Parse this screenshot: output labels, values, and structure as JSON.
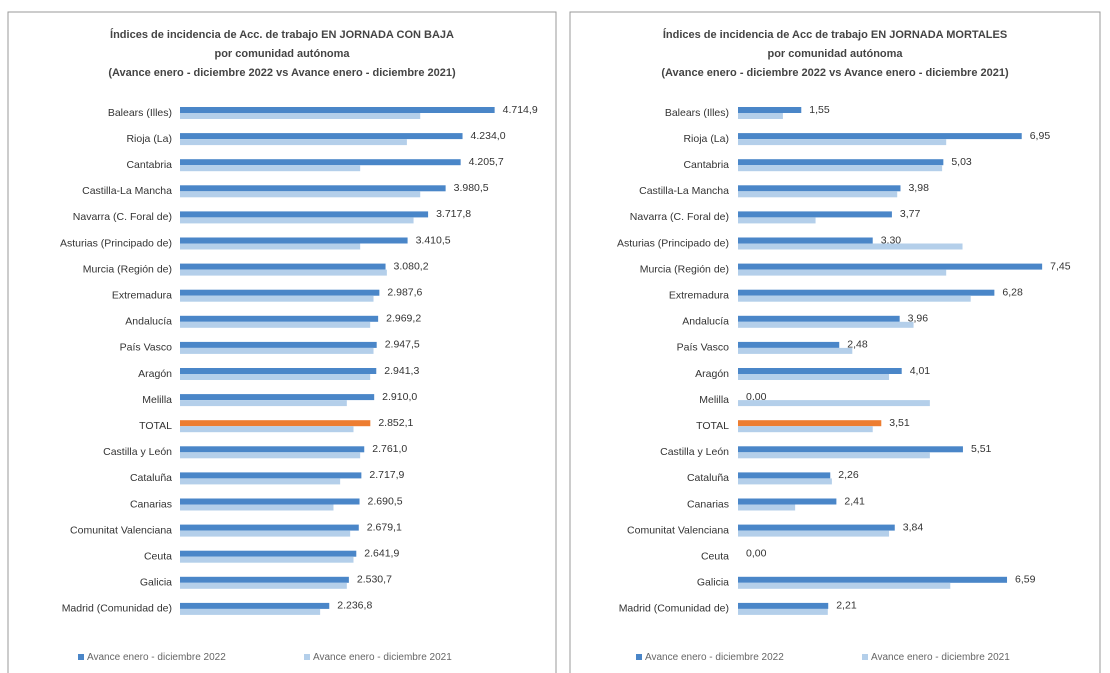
{
  "chart_data": [
    {
      "type": "bar",
      "orientation": "horizontal",
      "title": [
        "Índices de incidencia de Acc. de trabajo EN JORNADA CON BAJA",
        "por comunidad autónoma"
      ],
      "subtitle": "(Avance enero - diciembre 2022 vs Avance enero - diciembre 2021)",
      "categories": [
        "Balears (Illes)",
        "Rioja (La)",
        "Cantabria",
        "Castilla-La Mancha",
        "Navarra (C. Foral de)",
        "Asturias (Principado de)",
        "Murcia (Región de)",
        "Extremadura",
        "Andalucía",
        "País Vasco",
        "Aragón",
        "Melilla",
        "TOTAL",
        "Castilla y León",
        "Cataluña",
        "Canarias",
        "Comunitat Valenciana",
        "Ceuta",
        "Galicia",
        "Madrid (Comunidad de)"
      ],
      "series": [
        {
          "name": "Avance enero - diciembre 2022",
          "color": "#4a86c8",
          "values": [
            4714.9,
            4234.0,
            4205.7,
            3980.5,
            3717.8,
            3410.5,
            3080.2,
            2987.6,
            2969.2,
            2947.5,
            2941.3,
            2910.0,
            2852.1,
            2761.0,
            2717.9,
            2690.5,
            2679.1,
            2641.9,
            2530.7,
            2236.8
          ],
          "value_labels": [
            "4.714,9",
            "4.234,0",
            "4.205,7",
            "3.980,5",
            "3.717,8",
            "3.410,5",
            "3.080,2",
            "2.987,6",
            "2.969,2",
            "2.947,5",
            "2.941,3",
            "2.910,0",
            "2.852,1",
            "2.761,0",
            "2.717,9",
            "2.690,5",
            "2.679,1",
            "2.641,9",
            "2.530,7",
            "2.236,8"
          ]
        },
        {
          "name": "Avance enero - diciembre 2021",
          "color": "#b4cfea",
          "values": [
            3600,
            3400,
            2700,
            3600,
            3500,
            2700,
            3100,
            2900,
            2850,
            2900,
            2850,
            2500,
            2600,
            2700,
            2400,
            2300,
            2550,
            2600,
            2500,
            2100
          ]
        }
      ],
      "highlight": {
        "category": "TOTAL",
        "color": "#ed7d31"
      },
      "xlim": [
        0,
        5200
      ]
    },
    {
      "type": "bar",
      "orientation": "horizontal",
      "title": [
        "Índices de incidencia de Acc de trabajo EN JORNADA MORTALES",
        "por comunidad autónoma"
      ],
      "subtitle": "(Avance enero - diciembre 2022 vs Avance enero - diciembre 2021)",
      "categories": [
        "Balears (Illes)",
        "Rioja (La)",
        "Cantabria",
        "Castilla-La Mancha",
        "Navarra (C. Foral de)",
        "Asturias (Principado de)",
        "Murcia (Región de)",
        "Extremadura",
        "Andalucía",
        "País Vasco",
        "Aragón",
        "Melilla",
        "TOTAL",
        "Castilla y León",
        "Cataluña",
        "Canarias",
        "Comunitat Valenciana",
        "Ceuta",
        "Galicia",
        "Madrid (Comunidad de)"
      ],
      "series": [
        {
          "name": "Avance enero - diciembre 2022",
          "color": "#4a86c8",
          "values": [
            1.55,
            6.95,
            5.03,
            3.98,
            3.77,
            3.3,
            7.45,
            6.28,
            3.96,
            2.48,
            4.01,
            0.0,
            3.51,
            5.51,
            2.26,
            2.41,
            3.84,
            0.0,
            6.59,
            2.21
          ],
          "value_labels": [
            "1,55",
            "6,95",
            "5,03",
            "3,98",
            "3,77",
            "3,30",
            "7,45",
            "6,28",
            "3,96",
            "2,48",
            "4,01",
            "0,00",
            "3,51",
            "5,51",
            "2,26",
            "2,41",
            "3,84",
            "0,00",
            "6,59",
            "2,21"
          ]
        },
        {
          "name": "Avance enero - diciembre 2021",
          "color": "#b4cfea",
          "values": [
            1.1,
            5.1,
            5.0,
            3.9,
            1.9,
            5.5,
            5.1,
            5.7,
            4.3,
            2.8,
            3.7,
            4.7,
            3.3,
            4.7,
            2.3,
            1.4,
            3.7,
            0,
            5.2,
            2.2
          ]
        }
      ],
      "highlight": {
        "category": "TOTAL",
        "color": "#ed7d31"
      },
      "xlim": [
        0,
        8.5
      ]
    }
  ]
}
